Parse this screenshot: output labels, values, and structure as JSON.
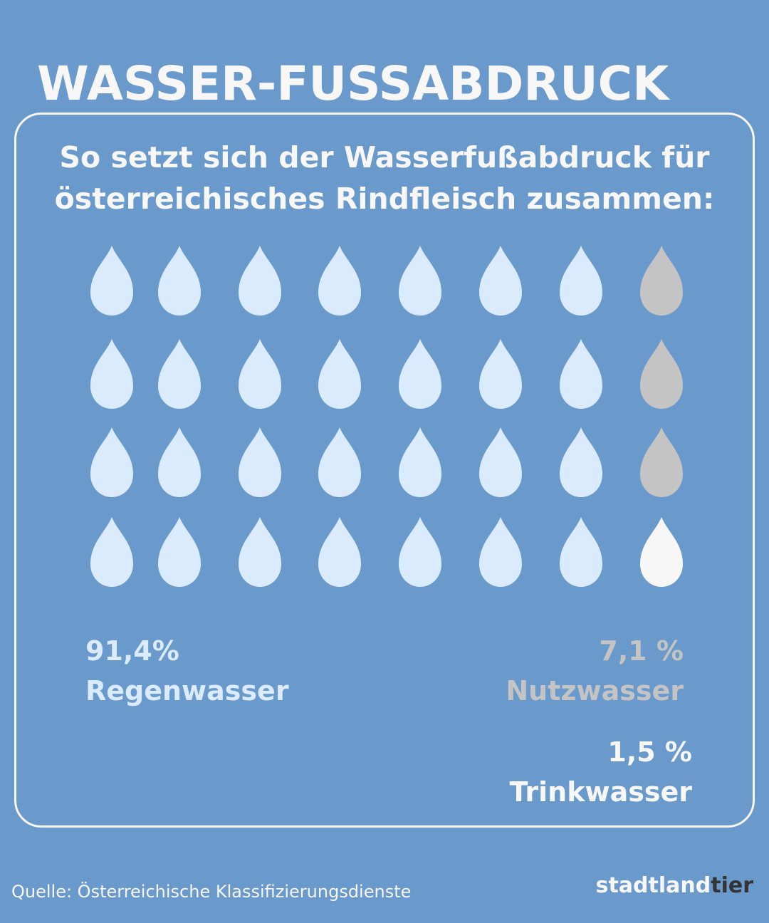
{
  "title": "WASSER-FUSSABDRUCK",
  "subtitle_lines": [
    "So setzt sich der Wasserfußabdruck für",
    "österreichisches Rindfleisch zusammen:"
  ],
  "colors": {
    "background": "#6a99cc",
    "regenwasser": "#d9ebfc",
    "nutzwasser": "#c4c4c4",
    "trinkwasser": "#f7f7f7",
    "text": "#f7f7f7"
  },
  "chart_data": {
    "type": "pictogram",
    "icon": "water-drop-icon",
    "rows": 4,
    "columns": 8,
    "cells": [
      [
        "regenwasser",
        "regenwasser",
        "regenwasser",
        "regenwasser",
        "regenwasser",
        "regenwasser",
        "regenwasser",
        "nutzwasser"
      ],
      [
        "regenwasser",
        "regenwasser",
        "regenwasser",
        "regenwasser",
        "regenwasser",
        "regenwasser",
        "regenwasser",
        "nutzwasser"
      ],
      [
        "regenwasser",
        "regenwasser",
        "regenwasser",
        "regenwasser",
        "regenwasser",
        "regenwasser",
        "regenwasser",
        "nutzwasser"
      ],
      [
        "regenwasser",
        "regenwasser",
        "regenwasser",
        "regenwasser",
        "regenwasser",
        "regenwasser",
        "regenwasser",
        "trinkwasser"
      ]
    ],
    "categories": [
      {
        "key": "regenwasser",
        "value_label": "91,4%",
        "name": "Regenwasser",
        "value": 91.4
      },
      {
        "key": "nutzwasser",
        "value_label": "7,1 %",
        "name": "Nutzwasser",
        "value": 7.1
      },
      {
        "key": "trinkwasser",
        "value_label": "1,5 %",
        "name": "Trinkwasser",
        "value": 1.5
      }
    ]
  },
  "source": "Quelle: Österreichische Klassifizierungsdienste",
  "logo": {
    "part1": "stadtland",
    "part2": "tier"
  }
}
